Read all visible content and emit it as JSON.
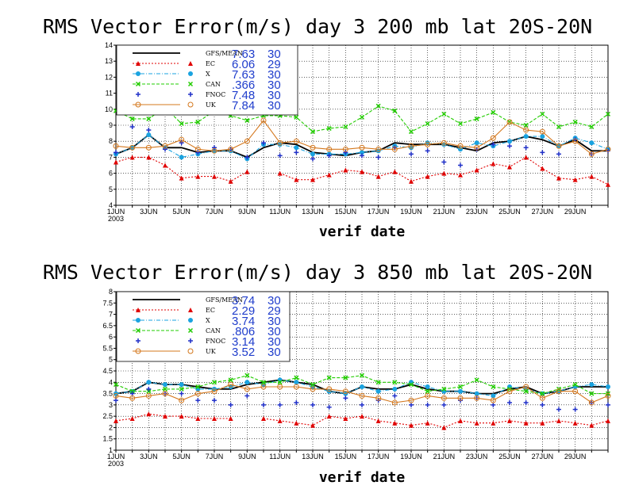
{
  "chart_data": [
    {
      "type": "line",
      "title": "RMS Vector Error(m/s) day 3  200 mb   lat 20S-20N",
      "xlabel": "verif date",
      "ylabel": "",
      "ylim": [
        4,
        14
      ],
      "yticks": [
        "4",
        "5",
        "6",
        "7",
        "8",
        "9",
        "10",
        "11",
        "12",
        "13",
        "14"
      ],
      "xlim": [
        1,
        31
      ],
      "xticks": [
        "1JUN",
        "3JUN",
        "5JUN",
        "7JUN",
        "9JUN",
        "11JUN",
        "13JUN",
        "15JUN",
        "17JUN",
        "19JUN",
        "21JUN",
        "23JUN",
        "25JUN",
        "27JUN",
        "29JUN"
      ],
      "xtick_year": "2003",
      "legend_position": "top-left",
      "series": [
        {
          "name": "GFS/MEAN",
          "score": "7.63",
          "count": "30",
          "color": "#000000",
          "dash": "",
          "marker": "none",
          "values": [
            7.2,
            7.6,
            8.4,
            7.6,
            7.6,
            7.3,
            7.4,
            7.4,
            7.0,
            7.6,
            7.9,
            7.8,
            7.3,
            7.2,
            7.1,
            7.3,
            7.4,
            7.9,
            7.8,
            7.8,
            7.8,
            7.6,
            7.4,
            7.9,
            8.0,
            8.3,
            8.1,
            7.7,
            8.1,
            7.4,
            7.4
          ]
        },
        {
          "name": "EC",
          "score": "6.06",
          "count": "29",
          "color": "#e00000",
          "dash": "2,2",
          "marker": "triangle",
          "values": [
            6.7,
            7.0,
            7.0,
            6.5,
            5.7,
            5.8,
            5.8,
            5.5,
            6.1,
            null,
            6.0,
            5.6,
            5.6,
            5.9,
            6.2,
            6.1,
            5.8,
            6.1,
            5.5,
            5.8,
            6.0,
            5.9,
            6.2,
            6.6,
            6.4,
            7.0,
            6.3,
            5.7,
            5.6,
            5.8,
            5.3
          ]
        },
        {
          "name": "X",
          "score": "7.63",
          "count": "30",
          "color": "#1aa3e0",
          "dash": "5,2,1,2",
          "marker": "circle",
          "values": [
            7.2,
            7.6,
            8.4,
            7.6,
            7.0,
            7.2,
            7.4,
            7.4,
            6.9,
            7.8,
            7.8,
            7.6,
            7.2,
            7.2,
            7.2,
            7.3,
            7.4,
            7.7,
            7.6,
            7.9,
            7.8,
            7.5,
            7.9,
            7.7,
            8.0,
            8.3,
            8.3,
            7.7,
            8.2,
            7.9,
            7.5
          ]
        },
        {
          "name": "CAN",
          "score": ".366",
          "count": "30",
          "color": "#22cc00",
          "dash": "4,2",
          "marker": "x",
          "values": [
            9.9,
            9.4,
            9.4,
            10.1,
            9.1,
            9.2,
            9.9,
            9.6,
            9.3,
            9.6,
            9.6,
            9.5,
            8.6,
            8.8,
            8.9,
            9.5,
            10.2,
            9.9,
            8.6,
            9.1,
            9.7,
            9.1,
            9.4,
            9.8,
            9.2,
            9.0,
            9.7,
            8.9,
            9.2,
            8.9,
            9.7
          ]
        },
        {
          "name": "FNOC",
          "score": "7.48",
          "count": "30",
          "color": "#2030c8",
          "dash": "0,1",
          "marker": "plus",
          "values": [
            7.3,
            8.9,
            8.7,
            7.5,
            7.9,
            7.3,
            7.6,
            7.5,
            7.0,
            7.9,
            7.1,
            7.3,
            6.9,
            7.1,
            7.3,
            7.1,
            7.0,
            7.6,
            7.2,
            7.4,
            6.7,
            6.5,
            7.5,
            7.8,
            7.7,
            7.6,
            7.3,
            7.2,
            8.1,
            7.2,
            7.4
          ]
        },
        {
          "name": "UK",
          "score": "7.84",
          "count": "30",
          "color": "#d4781e",
          "dash": "",
          "marker": "ocircle",
          "values": [
            7.7,
            7.6,
            7.6,
            7.7,
            8.1,
            7.5,
            7.4,
            7.5,
            8.0,
            9.3,
            7.9,
            8.0,
            7.6,
            7.5,
            7.5,
            7.6,
            7.5,
            7.5,
            7.7,
            7.8,
            7.9,
            7.7,
            7.6,
            8.2,
            9.2,
            8.7,
            8.6,
            7.7,
            8.0,
            7.2,
            7.5
          ]
        }
      ]
    },
    {
      "type": "line",
      "title": "RMS Vector Error(m/s) day 3  850 mb   lat 20S-20N",
      "xlabel": "verif date",
      "ylabel": "",
      "ylim": [
        1,
        8
      ],
      "yticks": [
        "1",
        "1.5",
        "2",
        "2.5",
        "3",
        "3.5",
        "4",
        "4.5",
        "5",
        "5.5",
        "6",
        "6.5",
        "7",
        "7.5",
        "8"
      ],
      "xlim": [
        1,
        31
      ],
      "xticks": [
        "1JUN",
        "3JUN",
        "5JUN",
        "7JUN",
        "9JUN",
        "11JUN",
        "13JUN",
        "15JUN",
        "17JUN",
        "19JUN",
        "21JUN",
        "23JUN",
        "25JUN",
        "27JUN",
        "29JUN"
      ],
      "xtick_year": "2003",
      "legend_position": "top-left",
      "series": [
        {
          "name": "GFS/MEAN",
          "score": "3.74",
          "count": "30",
          "color": "#000000",
          "dash": "",
          "marker": "none",
          "values": [
            3.5,
            3.6,
            4.0,
            3.9,
            3.9,
            3.8,
            3.7,
            3.7,
            3.9,
            4.0,
            4.1,
            4.0,
            3.9,
            3.6,
            3.5,
            3.8,
            3.7,
            3.7,
            3.9,
            3.7,
            3.6,
            3.6,
            3.5,
            3.5,
            3.7,
            3.8,
            3.5,
            3.6,
            3.8,
            3.8,
            3.8
          ]
        },
        {
          "name": "EC",
          "score": "2.29",
          "count": "29",
          "color": "#e00000",
          "dash": "2,2",
          "marker": "triangle",
          "values": [
            2.3,
            2.4,
            2.6,
            2.5,
            2.5,
            2.4,
            2.4,
            2.4,
            null,
            2.4,
            2.3,
            2.2,
            2.1,
            2.5,
            2.4,
            2.5,
            2.3,
            2.2,
            2.1,
            2.2,
            2.0,
            2.3,
            2.2,
            2.2,
            2.3,
            2.2,
            2.2,
            2.3,
            2.2,
            2.1,
            2.3
          ]
        },
        {
          "name": "X",
          "score": "3.74",
          "count": "30",
          "color": "#1aa3e0",
          "dash": "5,2,1,2",
          "marker": "circle",
          "values": [
            3.5,
            3.6,
            4.0,
            3.9,
            3.9,
            3.7,
            3.7,
            3.8,
            4.0,
            3.9,
            4.1,
            4.0,
            3.8,
            3.6,
            3.5,
            3.8,
            3.6,
            3.7,
            4.0,
            3.8,
            3.6,
            3.6,
            3.5,
            3.4,
            3.8,
            3.7,
            3.5,
            3.6,
            3.8,
            3.9,
            3.8
          ]
        },
        {
          "name": "CAN",
          "score": ".806",
          "count": "30",
          "color": "#22cc00",
          "dash": "4,2",
          "marker": "x",
          "values": [
            3.9,
            3.6,
            3.6,
            3.7,
            3.7,
            3.8,
            4.0,
            4.1,
            4.3,
            4.0,
            4.0,
            4.2,
            3.9,
            4.2,
            4.2,
            4.3,
            4.0,
            4.0,
            3.9,
            3.6,
            3.7,
            3.8,
            4.1,
            3.8,
            3.7,
            3.6,
            3.5,
            3.7,
            3.9,
            3.5,
            3.5
          ]
        },
        {
          "name": "FNOC",
          "score": "3.14",
          "count": "30",
          "color": "#2030c8",
          "dash": "0,1",
          "marker": "plus",
          "values": [
            3.2,
            3.5,
            3.7,
            3.5,
            3.5,
            3.2,
            3.2,
            3.0,
            3.4,
            3.0,
            3.0,
            3.1,
            3.0,
            2.9,
            3.3,
            3.0,
            3.2,
            3.4,
            3.0,
            3.0,
            3.0,
            3.2,
            3.3,
            3.0,
            3.1,
            3.1,
            3.0,
            2.8,
            2.8,
            3.1,
            3.0
          ]
        },
        {
          "name": "UK",
          "score": "3.52",
          "count": "30",
          "color": "#d4781e",
          "dash": "",
          "marker": "ocircle",
          "values": [
            3.4,
            3.3,
            3.4,
            3.5,
            3.2,
            3.5,
            3.6,
            3.9,
            3.7,
            3.8,
            3.8,
            3.8,
            3.7,
            3.7,
            3.6,
            3.4,
            3.3,
            3.1,
            3.2,
            3.4,
            3.3,
            3.3,
            3.3,
            3.2,
            3.6,
            3.8,
            3.3,
            3.6,
            3.6,
            3.1,
            3.4
          ]
        }
      ]
    }
  ]
}
